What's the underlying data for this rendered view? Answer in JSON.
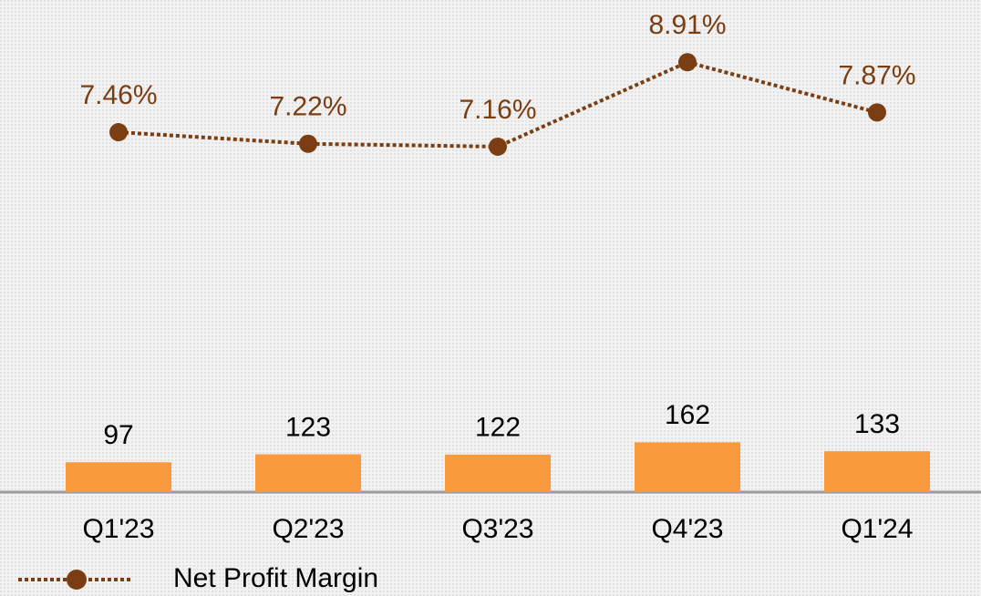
{
  "chart_data": {
    "type": "bar_line",
    "categories": [
      "Q1'23",
      "Q2'23",
      "Q3'23",
      "Q4'23",
      "Q1'24"
    ],
    "series": [
      {
        "type": "bar",
        "color": "#f99b3c",
        "values": [
          97,
          123,
          122,
          162,
          133
        ]
      },
      {
        "type": "line",
        "name": "Net Profit Margin",
        "color": "#7a3e12",
        "axis": "y2",
        "values": [
          7.46,
          7.22,
          7.16,
          8.91,
          7.87
        ],
        "value_labels": [
          "7.46%",
          "7.22%",
          "7.16%",
          "8.91%",
          "7.87%"
        ]
      }
    ],
    "ylim": [
      0,
      1600
    ],
    "y2lim": [
      0,
      10.2
    ],
    "legend": "bottom-left"
  }
}
